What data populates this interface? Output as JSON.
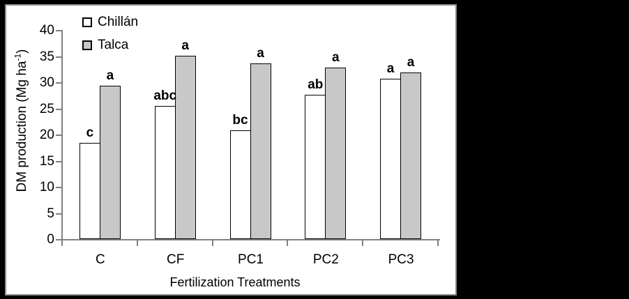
{
  "colors": {
    "background": "#000000",
    "panel_background": "#ffffff",
    "panel_border": "#8e8e8e",
    "axis": "#808080",
    "bar_border": "#000000",
    "text": "#000000"
  },
  "chart_data": {
    "type": "bar",
    "title": "",
    "categories": [
      "C",
      "CF",
      "PC1",
      "PC2",
      "PC3"
    ],
    "series": [
      {
        "name": "Chillán",
        "fill": "#ffffff",
        "values": [
          18.4,
          25.5,
          20.8,
          27.6,
          30.7
        ],
        "letters": [
          "c",
          "abc",
          "bc",
          "ab",
          "a"
        ]
      },
      {
        "name": "Talca",
        "fill": "#c8c8c8",
        "values": [
          29.3,
          35.0,
          33.6,
          32.8,
          31.9
        ],
        "letters": [
          "a",
          "a",
          "a",
          "a",
          "a"
        ]
      }
    ],
    "xlabel": "Fertilization Treatments",
    "ylabel": "DM production (Mg ha⁻¹)",
    "ylabel_main": "DM production (Mg ha",
    "ylabel_sup": "-1",
    "ylabel_close": ")",
    "ylim": [
      0,
      40
    ],
    "ytick_step": 5,
    "grid": false,
    "legend_position": "top-left-inside"
  }
}
